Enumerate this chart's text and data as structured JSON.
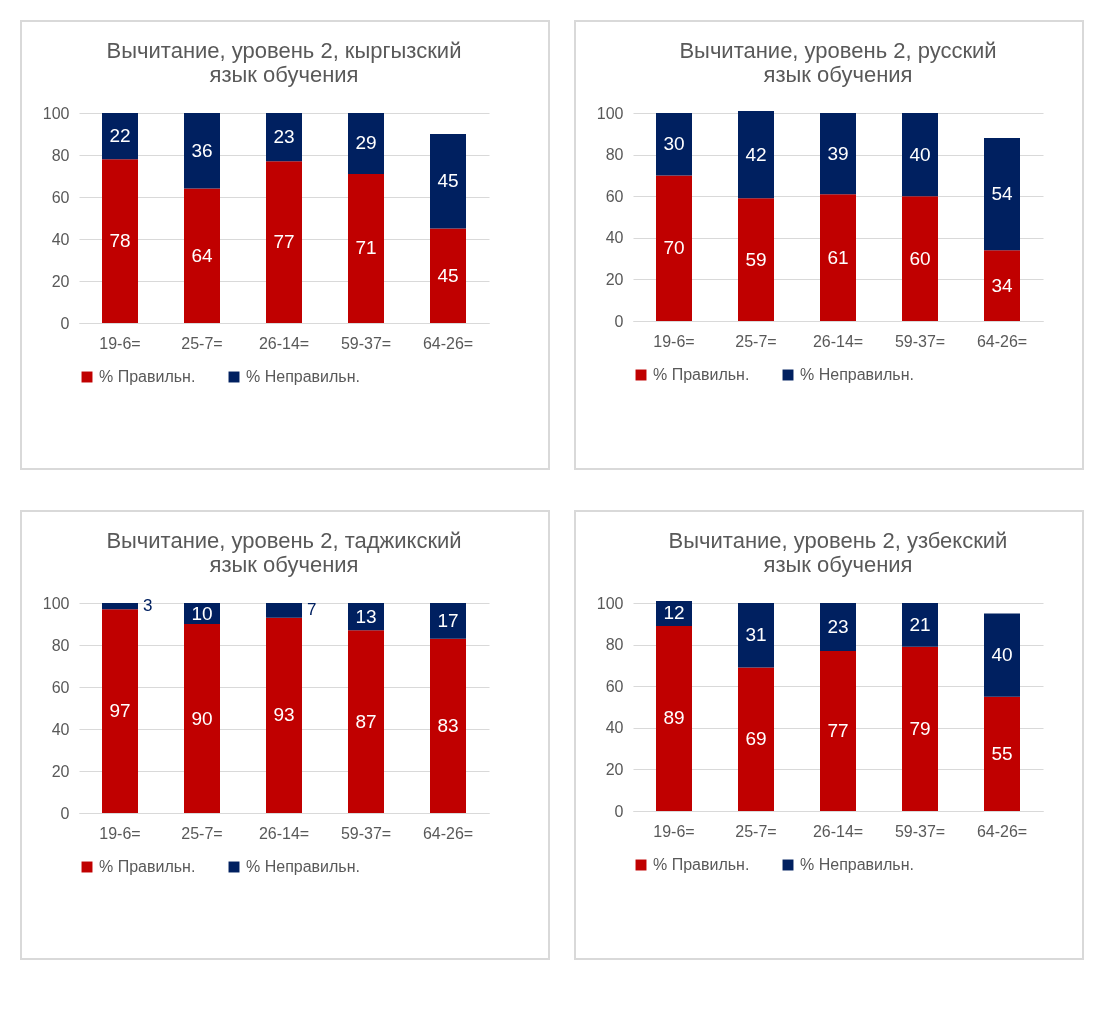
{
  "chart_data": [
    {
      "type": "bar",
      "title": "Вычитание, уровень 2, кыргызский язык обучения",
      "categories": [
        "19-6=",
        "25-7=",
        "26-14=",
        "59-37=",
        "64-26="
      ],
      "stacked": true,
      "data_labels": true,
      "legend": "bottom",
      "grid": "y",
      "ylim": [
        0,
        100
      ],
      "yticks": [
        0,
        20,
        40,
        60,
        80,
        100
      ],
      "series": [
        {
          "name": "% Правильн.",
          "color": "#c00000",
          "values": [
            78,
            64,
            77,
            71,
            45
          ]
        },
        {
          "name": "% Неправильн.",
          "color": "#002060",
          "values": [
            22,
            36,
            23,
            29,
            45
          ]
        }
      ]
    },
    {
      "type": "bar",
      "title": "Вычитание, уровень 2, русский язык обучения",
      "categories": [
        "19-6=",
        "25-7=",
        "26-14=",
        "59-37=",
        "64-26="
      ],
      "stacked": true,
      "data_labels": true,
      "legend": "bottom",
      "grid": "y",
      "ylim": [
        0,
        101
      ],
      "yticks": [
        0,
        20,
        40,
        60,
        80,
        100
      ],
      "series": [
        {
          "name": "% Правильн.",
          "color": "#c00000",
          "values": [
            70,
            59,
            61,
            60,
            34
          ]
        },
        {
          "name": "% Неправильн.",
          "color": "#002060",
          "values": [
            30,
            42,
            39,
            40,
            54
          ]
        }
      ]
    },
    {
      "type": "bar",
      "title": "Вычитание, уровень 2, таджикский язык обучения",
      "categories": [
        "19-6=",
        "25-7=",
        "26-14=",
        "59-37=",
        "64-26="
      ],
      "stacked": true,
      "data_labels": true,
      "legend": "bottom",
      "grid": "y",
      "ylim": [
        0,
        100
      ],
      "yticks": [
        0,
        20,
        40,
        60,
        80,
        100
      ],
      "series": [
        {
          "name": "% Правильн.",
          "color": "#c00000",
          "values": [
            97,
            90,
            93,
            87,
            83
          ]
        },
        {
          "name": "% Неправильн.",
          "color": "#002060",
          "values": [
            3,
            10,
            7,
            13,
            17
          ]
        }
      ]
    },
    {
      "type": "bar",
      "title": "Вычитание, уровень 2, узбекский язык обучения",
      "categories": [
        "19-6=",
        "25-7=",
        "26-14=",
        "59-37=",
        "64-26="
      ],
      "stacked": true,
      "data_labels": true,
      "legend": "bottom",
      "grid": "y",
      "ylim": [
        0,
        101
      ],
      "yticks": [
        0,
        20,
        40,
        60,
        80,
        100
      ],
      "series": [
        {
          "name": "% Правильн.",
          "color": "#c00000",
          "values": [
            89,
            69,
            77,
            79,
            55
          ]
        },
        {
          "name": "% Неправильн.",
          "color": "#002060",
          "values": [
            12,
            31,
            23,
            21,
            40
          ]
        }
      ]
    }
  ]
}
